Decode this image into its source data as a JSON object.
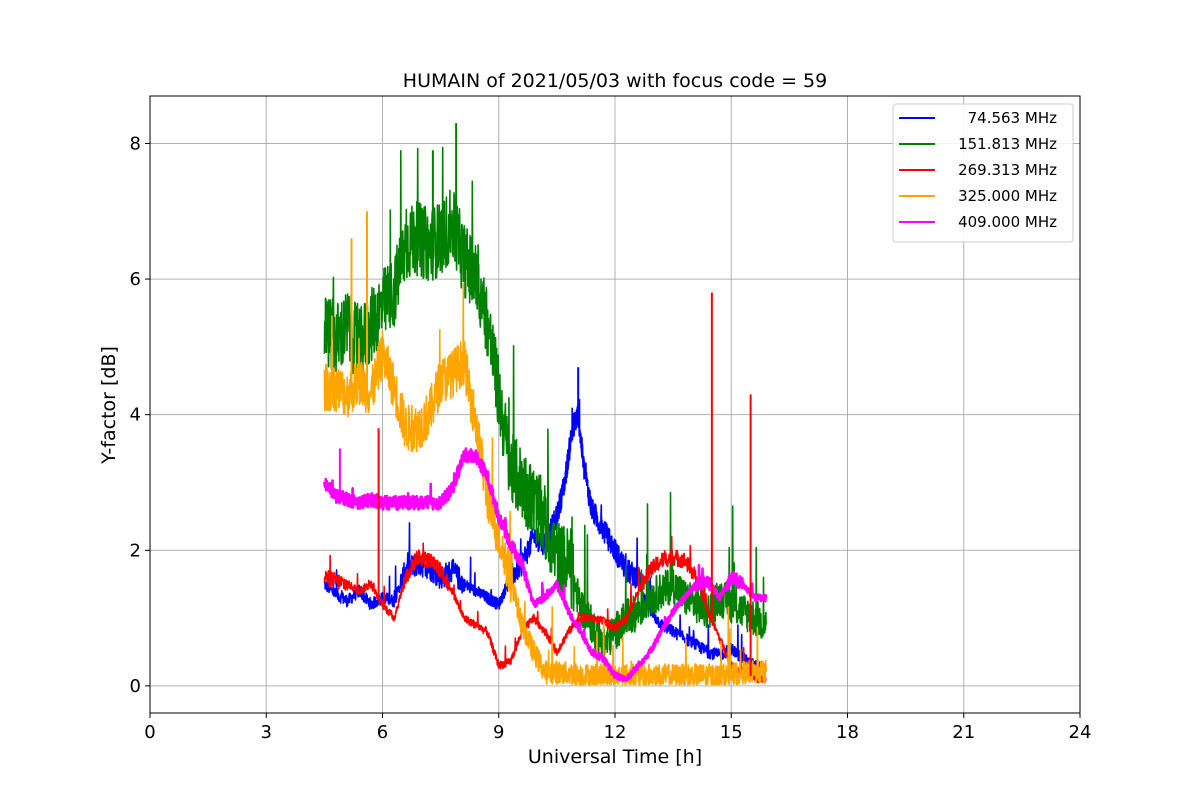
{
  "chart_data": {
    "type": "line",
    "title": "HUMAIN of 2021/05/03 with focus code = 59",
    "xlabel": "Universal Time [h]",
    "ylabel": "Y-factor [dB]",
    "xlim": [
      0,
      24
    ],
    "ylim": [
      -0.4,
      8.7
    ],
    "xticks": [
      0,
      3,
      6,
      9,
      12,
      15,
      18,
      21,
      24
    ],
    "yticks": [
      0,
      2,
      4,
      6,
      8
    ],
    "grid": true,
    "legend_position": "top-right",
    "series": [
      {
        "name": "74.563 MHz",
        "color": "#0000ff",
        "x": [
          4.5,
          4.8,
          5.1,
          5.4,
          5.7,
          6.0,
          6.3,
          6.6,
          6.9,
          7.2,
          7.5,
          7.8,
          8.1,
          8.4,
          8.7,
          9.0,
          9.3,
          9.6,
          9.9,
          10.2,
          10.5,
          10.7,
          10.9,
          11.05,
          11.2,
          11.4,
          11.7,
          12.0,
          12.3,
          12.6,
          12.9,
          13.2,
          13.5,
          13.8,
          14.1,
          14.4,
          14.7,
          15.0,
          15.3,
          15.6,
          15.9
        ],
        "y": [
          1.5,
          1.35,
          1.25,
          1.4,
          1.2,
          1.3,
          1.25,
          1.7,
          1.8,
          1.75,
          1.6,
          1.7,
          1.5,
          1.4,
          1.3,
          1.2,
          1.6,
          1.8,
          2.2,
          2.1,
          2.5,
          3.0,
          3.8,
          4.0,
          3.2,
          2.6,
          2.3,
          2.0,
          1.7,
          1.6,
          1.1,
          0.9,
          0.8,
          0.7,
          0.6,
          0.5,
          0.45,
          0.55,
          0.4,
          0.3,
          0.25
        ]
      },
      {
        "name": "151.813 MHz",
        "color": "#008000",
        "x": [
          4.5,
          4.8,
          5.1,
          5.4,
          5.7,
          6.0,
          6.3,
          6.6,
          6.9,
          7.2,
          7.5,
          7.8,
          8.1,
          8.4,
          8.7,
          9.0,
          9.3,
          9.6,
          9.9,
          10.2,
          10.5,
          10.8,
          11.1,
          11.4,
          11.7,
          12.0,
          12.3,
          12.6,
          12.9,
          13.2,
          13.5,
          13.8,
          14.1,
          14.4,
          14.7,
          15.0,
          15.3,
          15.6,
          15.9
        ],
        "y": [
          5.3,
          5.1,
          5.3,
          5.0,
          5.3,
          5.6,
          5.8,
          6.5,
          6.6,
          6.5,
          6.6,
          6.8,
          6.3,
          6.0,
          5.4,
          4.3,
          3.2,
          3.0,
          2.7,
          2.4,
          1.9,
          1.8,
          1.2,
          0.9,
          0.6,
          0.8,
          1.0,
          1.1,
          1.3,
          1.4,
          1.5,
          1.3,
          1.2,
          1.1,
          1.3,
          1.2,
          1.1,
          1.0,
          0.9
        ]
      },
      {
        "name": "269.313 MHz",
        "color": "#ff0000",
        "x": [
          4.5,
          4.8,
          5.1,
          5.4,
          5.7,
          6.0,
          6.3,
          6.6,
          6.9,
          7.2,
          7.5,
          7.8,
          8.1,
          8.4,
          8.7,
          9.0,
          9.3,
          9.6,
          9.9,
          10.2,
          10.5,
          10.8,
          11.1,
          11.4,
          11.7,
          12.0,
          12.3,
          12.6,
          12.9,
          13.2,
          13.5,
          13.8,
          14.1,
          14.4,
          14.7,
          15.0,
          15.3,
          15.6,
          15.9
        ],
        "y": [
          1.6,
          1.55,
          1.5,
          1.4,
          1.5,
          1.2,
          1.0,
          1.6,
          1.9,
          1.85,
          1.7,
          1.4,
          1.0,
          0.9,
          0.8,
          0.3,
          0.35,
          0.8,
          1.0,
          0.8,
          0.5,
          0.8,
          1.0,
          1.0,
          0.95,
          0.85,
          1.0,
          1.4,
          1.7,
          1.85,
          1.9,
          1.85,
          1.6,
          1.1,
          0.7,
          0.3,
          0.2,
          0.12,
          0.08
        ]
      },
      {
        "name": "325.000 MHz",
        "color": "#ffa500",
        "x": [
          4.5,
          4.8,
          5.1,
          5.4,
          5.7,
          6.0,
          6.3,
          6.6,
          6.9,
          7.2,
          7.5,
          7.8,
          8.1,
          8.4,
          8.7,
          9.0,
          9.3,
          9.6,
          9.9,
          10.2,
          10.5,
          10.8,
          11.1,
          11.4,
          11.7,
          12.0,
          12.3,
          12.6,
          12.9,
          13.2,
          13.5,
          13.8,
          14.1,
          14.4,
          14.7,
          15.0,
          15.3,
          15.6,
          15.9
        ],
        "y": [
          4.4,
          4.4,
          4.3,
          4.5,
          4.3,
          4.9,
          4.4,
          3.8,
          3.8,
          4.0,
          4.5,
          4.6,
          4.8,
          3.9,
          2.8,
          2.2,
          1.6,
          0.9,
          0.5,
          0.2,
          0.2,
          0.18,
          0.16,
          0.15,
          0.15,
          0.15,
          0.15,
          0.15,
          0.15,
          0.15,
          0.15,
          0.15,
          0.15,
          0.15,
          0.15,
          0.15,
          0.2,
          0.2,
          0.2
        ]
      },
      {
        "name": "409.000 MHz",
        "color": "#ff00ff",
        "x": [
          4.5,
          4.8,
          5.1,
          5.4,
          5.7,
          6.0,
          6.3,
          6.6,
          6.9,
          7.2,
          7.5,
          7.8,
          8.1,
          8.4,
          8.7,
          9.0,
          9.3,
          9.6,
          9.9,
          10.2,
          10.5,
          10.8,
          11.1,
          11.4,
          11.7,
          12.0,
          12.3,
          12.6,
          12.9,
          13.2,
          13.5,
          13.8,
          14.1,
          14.4,
          14.7,
          15.0,
          15.3,
          15.6,
          15.9
        ],
        "y": [
          3.0,
          2.8,
          2.75,
          2.7,
          2.75,
          2.7,
          2.7,
          2.7,
          2.7,
          2.7,
          2.7,
          2.9,
          3.4,
          3.4,
          3.1,
          2.5,
          2.1,
          1.8,
          1.2,
          1.3,
          1.5,
          1.1,
          0.8,
          0.5,
          0.4,
          0.15,
          0.1,
          0.3,
          0.5,
          0.8,
          1.1,
          1.3,
          1.5,
          1.55,
          1.3,
          1.6,
          1.5,
          1.3,
          1.3
        ]
      }
    ],
    "spikes": [
      {
        "series": "269.313 MHz",
        "x": 14.5,
        "y": 5.8
      },
      {
        "series": "269.313 MHz",
        "x": 15.5,
        "y": 4.3
      },
      {
        "series": "269.313 MHz",
        "x": 5.9,
        "y": 3.8
      },
      {
        "series": "74.563 MHz",
        "x": 11.05,
        "y": 4.7
      },
      {
        "series": "151.813 MHz",
        "x": 7.9,
        "y": 8.3
      },
      {
        "series": "151.813 MHz",
        "x": 7.3,
        "y": 7.9
      },
      {
        "series": "325.000 MHz",
        "x": 5.6,
        "y": 7.0
      },
      {
        "series": "325.000 MHz",
        "x": 5.2,
        "y": 6.6
      },
      {
        "series": "409.000 MHz",
        "x": 4.9,
        "y": 3.5
      }
    ]
  }
}
